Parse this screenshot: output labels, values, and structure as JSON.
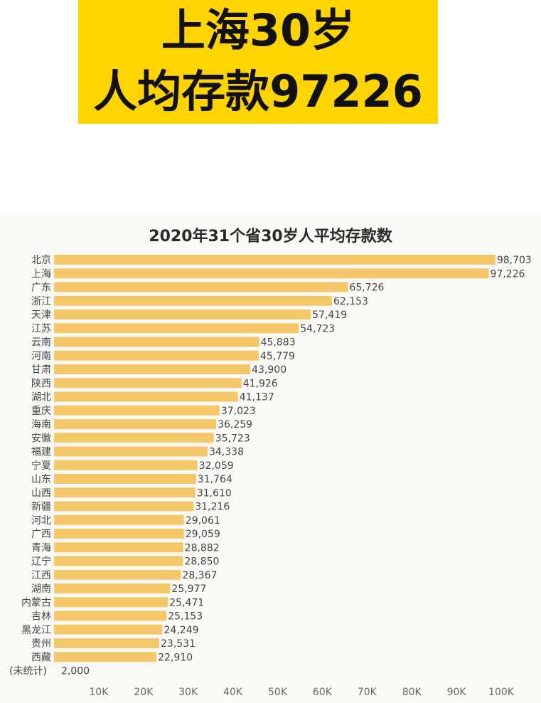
{
  "banner": {
    "line1": "上海30岁",
    "line2": "人均存款97226",
    "color": "#ffd400"
  },
  "chart_data": {
    "type": "bar",
    "orientation": "horizontal",
    "title": "2020年31个省30岁人平均存款数",
    "categories": [
      "北京",
      "上海",
      "广东",
      "浙江",
      "天津",
      "江苏",
      "云南",
      "河南",
      "甘肃",
      "陕西",
      "湖北",
      "重庆",
      "海南",
      "安徽",
      "福建",
      "宁夏",
      "山东",
      "山西",
      "新疆",
      "河北",
      "广西",
      "青海",
      "辽宁",
      "江西",
      "湖南",
      "内蒙古",
      "吉林",
      "黑龙江",
      "贵州",
      "西藏",
      "(未统计)"
    ],
    "values": [
      98703,
      97226,
      65726,
      62153,
      57419,
      54723,
      45883,
      45779,
      43900,
      41926,
      41137,
      37023,
      36259,
      35723,
      34338,
      32059,
      31764,
      31610,
      31216,
      29061,
      29059,
      28882,
      28850,
      28367,
      25977,
      25471,
      25153,
      24249,
      23531,
      22910,
      2000
    ],
    "value_labels": [
      "98,703",
      "97,226",
      "65,726",
      "62,153",
      "57,419",
      "54,723",
      "45,883",
      "45,779",
      "43,900",
      "41,926",
      "41,137",
      "37,023",
      "36,259",
      "35,723",
      "34,338",
      "32,059",
      "31,764",
      "31,610",
      "31,216",
      "29,061",
      "29,059",
      "28,882",
      "28,850",
      "28,367",
      "25,977",
      "25,471",
      "25,153",
      "24,249",
      "23,531",
      "22,910",
      "2,000"
    ],
    "x_ticks": [
      "10K",
      "20K",
      "30K",
      "40K",
      "50K",
      "60K",
      "70K",
      "80K",
      "90K",
      "100K"
    ],
    "xlim": [
      0,
      100000
    ],
    "bar_color": "#f4c76a",
    "grid": false
  }
}
